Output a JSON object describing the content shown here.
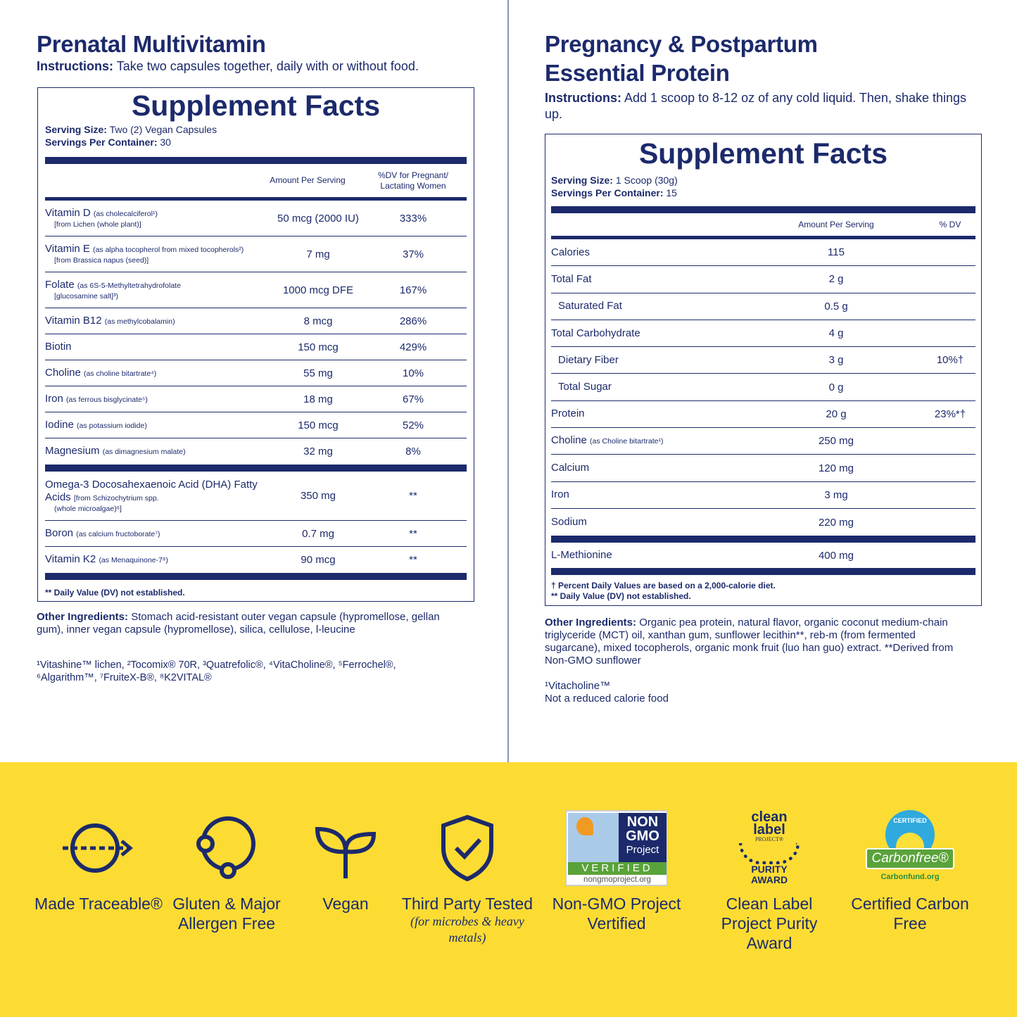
{
  "left": {
    "title": "Prenatal Multivitamin",
    "instructions_label": "Instructions:",
    "instructions": "Take two capsules together, daily with or without food.",
    "facts_title": "Supplement Facts",
    "serving_size_label": "Serving Size:",
    "serving_size": "Two (2) Vegan Capsules",
    "servings_label": "Servings Per Container:",
    "servings": "30",
    "col_amount": "Amount Per Serving",
    "col_dv": "%DV for Pregnant/ Lactating Women",
    "rows": [
      {
        "name": "Vitamin D",
        "note": "(as cholecalciferol¹)",
        "note2": "[from Lichen (whole plant)]",
        "amount": "50 mcg (2000 IU)",
        "dv": "333%"
      },
      {
        "name": "Vitamin E",
        "note": "(as alpha tocopherol from mixed tocopherols²)",
        "note2": "[from Brassica napus (seed)]",
        "amount": "7 mg",
        "dv": "37%"
      },
      {
        "name": "Folate",
        "note": "(as 6S-5-Methyltetrahydrofolate",
        "note2": "[glucosamine salt]³)",
        "amount": "1000 mcg DFE",
        "dv": "167%"
      },
      {
        "name": "Vitamin B12",
        "note": "(as methylcobalamin)",
        "amount": "8 mcg",
        "dv": "286%"
      },
      {
        "name": "Biotin",
        "note": "",
        "amount": "150 mcg",
        "dv": "429%"
      },
      {
        "name": "Choline",
        "note": "(as choline bitartrate⁴)",
        "amount": "55 mg",
        "dv": "10%"
      },
      {
        "name": "Iron",
        "note": "(as ferrous bisglycinate⁵)",
        "amount": "18 mg",
        "dv": "67%"
      },
      {
        "name": "Iodine",
        "note": "(as potassium iodide)",
        "amount": "150 mcg",
        "dv": "52%"
      },
      {
        "name": "Magnesium",
        "note": "(as dimagnesium malate)",
        "amount": "32 mg",
        "dv": "8%"
      }
    ],
    "rows2": [
      {
        "name": "Omega-3 Docosahexaenoic Acid (DHA) Fatty Acids",
        "note": "[from Schizochytrium spp.",
        "note2": "(whole microalgae)⁶]",
        "amount": "350 mg",
        "dv": "**"
      },
      {
        "name": "Boron",
        "note": "(as calcium fructoborate⁷)",
        "amount": "0.7 mg",
        "dv": "**"
      },
      {
        "name": "Vitamin K2",
        "note": "(as Menaquinone-7⁸)",
        "amount": "90 mcg",
        "dv": "**"
      }
    ],
    "footnote": "** Daily Value (DV) not established.",
    "other_label": "Other Ingredients:",
    "other": "Stomach acid-resistant outer vegan capsule (hypromellose, gellan gum), inner vegan capsule (hypromellose), silica, cellulose, l-leucine",
    "trademarks": "¹Vitashine™ lichen,  ²Tocomix® 70R,  ³Quatrefolic®,  ⁴VitaCholine®,  ⁵Ferrochel®,  ⁶Algarithm™,  ⁷FruiteX-B®,  ⁸K2VITAL®"
  },
  "right": {
    "title": "Pregnancy & Postpartum Essential Protein",
    "instructions_label": "Instructions:",
    "instructions": "Add 1 scoop to 8-12 oz of any cold liquid. Then, shake things up.",
    "facts_title": "Supplement Facts",
    "serving_size_label": "Serving Size:",
    "serving_size": "1 Scoop (30g)",
    "servings_label": "Servings Per Container:",
    "servings": "15",
    "col_amount": "Amount Per Serving",
    "col_dv": "% DV",
    "rows": [
      {
        "name": "Calories",
        "amount": "115",
        "dv": ""
      },
      {
        "name": "Total Fat",
        "amount": "2 g",
        "dv": ""
      },
      {
        "name": "Saturated Fat",
        "amount": "0.5 g",
        "dv": "",
        "indent": true
      },
      {
        "name": "Total Carbohydrate",
        "amount": "4 g",
        "dv": ""
      },
      {
        "name": "Dietary Fiber",
        "amount": "3 g",
        "dv": "10%†",
        "indent": true
      },
      {
        "name": "Total Sugar",
        "amount": "0 g",
        "dv": "",
        "indent": true
      },
      {
        "name": "Protein",
        "amount": "20 g",
        "dv": "23%*†"
      },
      {
        "name": "Choline",
        "note": "(as Choline bitartrate¹)",
        "amount": "250 mg",
        "dv": ""
      },
      {
        "name": "Calcium",
        "amount": "120 mg",
        "dv": ""
      },
      {
        "name": "Iron",
        "amount": "3 mg",
        "dv": ""
      },
      {
        "name": "Sodium",
        "amount": "220 mg",
        "dv": ""
      }
    ],
    "rows2": [
      {
        "name": "L-Methionine",
        "amount": "400 mg",
        "dv": ""
      }
    ],
    "footnote1": "† Percent Daily Values are based on a 2,000-calorie diet.",
    "footnote2": "** Daily Value (DV) not established.",
    "other_label": "Other Ingredients:",
    "other": "Organic pea protein, natural flavor, organic coconut medium-chain triglyceride (MCT) oil, xanthan gum, sunflower lecithin**, reb-m (from fermented sugarcane), mixed tocopherols, organic monk fruit (luo han guo) extract. **Derived from Non-GMO sunflower",
    "trademark": "¹Vitacholine™",
    "note": "Not a reduced calorie food"
  },
  "badges": [
    {
      "label": "Made Traceable®",
      "icon": "traceable-arrow-icon"
    },
    {
      "label": "Gluten & Major Allergen Free",
      "icon": "allergen-free-icon"
    },
    {
      "label": "Vegan",
      "icon": "sprout-icon"
    },
    {
      "label": "Third Party Tested",
      "sub": "(for microbes & heavy metals)",
      "icon": "shield-check-icon"
    },
    {
      "label": "Non-GMO Project Vertified",
      "icon": "non-gmo-logo",
      "logo": [
        "NON",
        "GMO",
        "Project",
        "VERIFIED",
        "nongmoproject.org"
      ]
    },
    {
      "label": "Clean Label Project Purity Award",
      "icon": "clean-label-logo",
      "logo": [
        "clean",
        "label",
        "PROJECT®",
        "PURITY",
        "AWARD"
      ]
    },
    {
      "label": "Certified Carbon Free",
      "icon": "carbonfree-logo",
      "logo": [
        "CERTIFIED",
        "Carbonfree®",
        "Carbonfund.org"
      ]
    }
  ],
  "colors": {
    "navy": "#1c2a6b",
    "yellow": "#fcdc33",
    "green": "#5aa33a"
  }
}
